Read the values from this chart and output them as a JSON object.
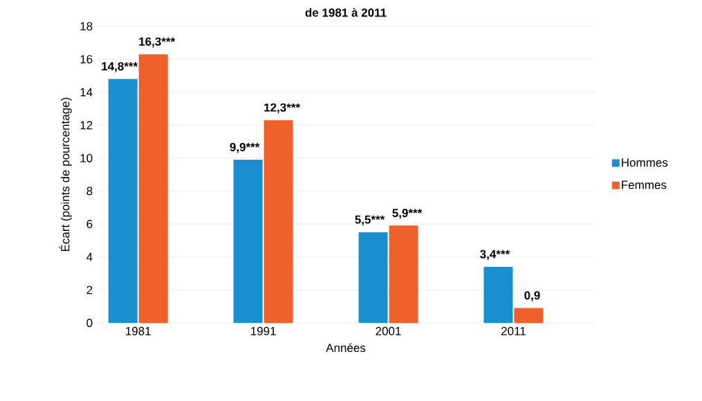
{
  "chart_data": {
    "type": "bar",
    "title": "de 1981 à 2011",
    "xlabel": "Années",
    "ylabel": "Écart (points de pourcentage)",
    "categories": [
      "1981",
      "1991",
      "2001",
      "2011"
    ],
    "series": [
      {
        "name": "Hommes",
        "color": "#1a8fd0",
        "values": [
          14.8,
          9.9,
          5.5,
          3.4
        ],
        "value_labels": [
          "14,8***",
          "9,9***",
          "5,5***",
          "3,4***"
        ]
      },
      {
        "name": "Femmes",
        "color": "#f0602a",
        "values": [
          16.3,
          12.3,
          5.9,
          0.9
        ],
        "value_labels": [
          "16,3***",
          "12,3***",
          "5,9***",
          "0,9"
        ]
      }
    ],
    "ylim": [
      0,
      18
    ],
    "yticks": [
      0,
      2,
      4,
      6,
      8,
      10,
      12,
      14,
      16,
      18
    ],
    "grid": "y",
    "legend": "right"
  }
}
